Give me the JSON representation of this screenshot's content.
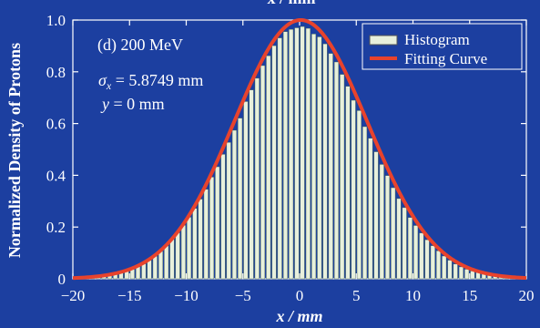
{
  "chart_data": {
    "type": "bar",
    "top_title_fragment": "x / mm",
    "xlabel": "x / mm",
    "ylabel": "Normalized Density of Protons",
    "xlim": [
      -20,
      20
    ],
    "ylim": [
      0,
      1.0
    ],
    "xticks": [
      "−20",
      "−15",
      "−10",
      "−5",
      "0",
      "5",
      "10",
      "15",
      "20"
    ],
    "yticks": [
      "0",
      "0.2",
      "0.4",
      "0.6",
      "0.8",
      "1.0"
    ],
    "annotations": {
      "panel": "(d) 200 MeV",
      "sigma": "σx = 5.8749 mm",
      "y_position": "y = 0 mm"
    },
    "legend": {
      "placement": "top-right",
      "entries": [
        "Histogram",
        "Fitting Curve"
      ]
    },
    "colors": {
      "background": "#1c3fa0",
      "bar": "#e8f0dc",
      "curve": "#e8432c",
      "axes": "#ffffff"
    },
    "histogram": {
      "bin_width": 0.5,
      "x": [
        -20.0,
        -19.5,
        -19.0,
        -18.5,
        -18.0,
        -17.5,
        -17.0,
        -16.5,
        -16.0,
        -15.5,
        -15.0,
        -14.5,
        -14.0,
        -13.5,
        -13.0,
        -12.5,
        -12.0,
        -11.5,
        -11.0,
        -10.5,
        -10.0,
        -9.5,
        -9.0,
        -8.5,
        -8.0,
        -7.5,
        -7.0,
        -6.5,
        -6.0,
        -5.5,
        -5.0,
        -4.5,
        -4.0,
        -3.5,
        -3.0,
        -2.5,
        -2.0,
        -1.5,
        -1.0,
        -0.5,
        0.0,
        0.5,
        1.0,
        1.5,
        2.0,
        2.5,
        3.0,
        3.5,
        4.0,
        4.5,
        5.0,
        5.5,
        6.0,
        6.5,
        7.0,
        7.5,
        8.0,
        8.5,
        9.0,
        9.5,
        10.0,
        10.5,
        11.0,
        11.5,
        12.0,
        12.5,
        13.0,
        13.5,
        14.0,
        14.5,
        15.0,
        15.5,
        16.0,
        16.5,
        17.0,
        17.5,
        18.0,
        18.5,
        19.0,
        19.5
      ],
      "values": [
        0.003,
        0.004,
        0.005,
        0.006,
        0.008,
        0.01,
        0.014,
        0.017,
        0.023,
        0.029,
        0.037,
        0.047,
        0.058,
        0.071,
        0.087,
        0.106,
        0.127,
        0.152,
        0.178,
        0.207,
        0.238,
        0.272,
        0.308,
        0.346,
        0.393,
        0.433,
        0.481,
        0.527,
        0.574,
        0.621,
        0.685,
        0.73,
        0.775,
        0.824,
        0.862,
        0.901,
        0.931,
        0.955,
        0.964,
        0.97,
        0.975,
        0.968,
        0.946,
        0.935,
        0.908,
        0.871,
        0.838,
        0.79,
        0.744,
        0.69,
        0.65,
        0.588,
        0.543,
        0.491,
        0.442,
        0.399,
        0.352,
        0.31,
        0.275,
        0.237,
        0.206,
        0.177,
        0.151,
        0.128,
        0.108,
        0.088,
        0.072,
        0.057,
        0.046,
        0.037,
        0.03,
        0.024,
        0.018,
        0.014,
        0.011,
        0.008,
        0.006,
        0.004,
        0.003,
        0.002
      ]
    },
    "fit": {
      "mu": 0.1,
      "sigma": 5.8749,
      "amplitude": 1.0
    }
  }
}
